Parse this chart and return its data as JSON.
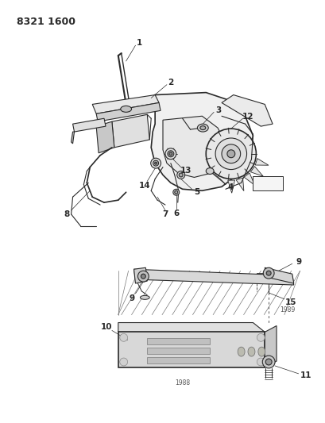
{
  "title_code": "8321 1600",
  "background_color": "#ffffff",
  "line_color": "#2a2a2a",
  "light_gray": "#cccccc",
  "mid_gray": "#aaaaaa",
  "dark_gray": "#555555",
  "fig_width": 4.1,
  "fig_height": 5.33,
  "dpi": 100,
  "year_1988": "1988",
  "year_1989": "1989",
  "part_numbers": [
    "1",
    "2",
    "3",
    "4",
    "5",
    "6",
    "7",
    "8",
    "9",
    "9",
    "10",
    "11",
    "12",
    "13",
    "14",
    "15"
  ]
}
